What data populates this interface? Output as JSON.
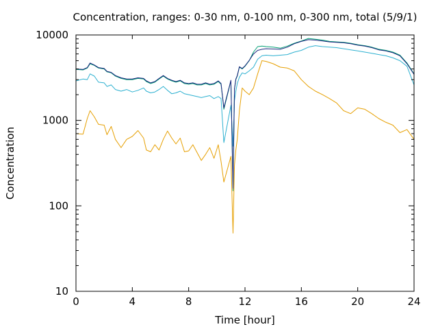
{
  "chart_data": {
    "type": "line",
    "title": "Concentration, ranges: 0-30 nm, 0-100 nm, 0-300 nm, total (5/9/1)",
    "xlabel": "Time [hour]",
    "ylabel": "Concentration",
    "xlim": [
      0,
      24
    ],
    "ylim": [
      10,
      10000
    ],
    "yscale": "log",
    "grid": false,
    "legend": "none",
    "x_ticks": [
      "0",
      "4",
      "8",
      "12",
      "16",
      "20",
      "24"
    ],
    "y_ticks": [
      "10",
      "100",
      "1000",
      "10000"
    ],
    "series": [
      {
        "color": "#e69f00",
        "x": [
          0,
          0.5,
          0.8,
          1.0,
          1.3,
          1.6,
          2.0,
          2.2,
          2.5,
          2.8,
          3.2,
          3.6,
          4.0,
          4.4,
          4.8,
          5.0,
          5.3,
          5.6,
          5.9,
          6.2,
          6.5,
          6.8,
          7.1,
          7.4,
          7.7,
          8.0,
          8.3,
          8.6,
          8.9,
          9.2,
          9.5,
          9.8,
          10.1,
          10.3,
          10.5,
          11.0,
          11.15,
          11.25,
          11.35,
          11.45,
          11.6,
          11.8,
          12.0,
          12.3,
          12.6,
          12.9,
          13.2,
          13.5,
          14.0,
          14.5,
          15.0,
          15.5,
          16.0,
          16.5,
          17.0,
          17.5,
          18.0,
          18.5,
          19.0,
          19.5,
          20.0,
          20.5,
          21.0,
          21.5,
          22.0,
          22.5,
          23.0,
          23.5,
          24.0
        ],
        "y": [
          700,
          690,
          1050,
          1300,
          1100,
          900,
          880,
          680,
          850,
          600,
          480,
          600,
          650,
          760,
          620,
          450,
          430,
          520,
          450,
          600,
          750,
          620,
          530,
          620,
          430,
          440,
          520,
          420,
          340,
          400,
          480,
          360,
          520,
          330,
          190,
          380,
          48,
          300,
          450,
          600,
          1300,
          2400,
          2200,
          2000,
          2400,
          3500,
          5000,
          4900,
          4600,
          4200,
          4100,
          3800,
          3000,
          2500,
          2200,
          2000,
          1800,
          1600,
          1300,
          1200,
          1400,
          1350,
          1200,
          1050,
          950,
          880,
          720,
          780,
          600
        ]
      },
      {
        "color": "#2cb0d0",
        "x": [
          0,
          0.5,
          0.8,
          1.0,
          1.3,
          1.6,
          2.0,
          2.2,
          2.5,
          2.8,
          3.2,
          3.6,
          4.0,
          4.4,
          4.8,
          5.0,
          5.3,
          5.6,
          5.9,
          6.2,
          6.5,
          6.8,
          7.1,
          7.4,
          7.7,
          8.0,
          8.3,
          8.6,
          8.9,
          9.2,
          9.5,
          9.8,
          10.1,
          10.3,
          10.5,
          11.0,
          11.15,
          11.25,
          11.35,
          11.45,
          11.6,
          11.8,
          12.0,
          12.3,
          12.6,
          12.9,
          13.2,
          13.5,
          14.0,
          14.5,
          15.0,
          15.5,
          16.0,
          16.5,
          17.0,
          17.5,
          18.0,
          18.5,
          19.0,
          19.5,
          20.0,
          20.5,
          21.0,
          21.5,
          22.0,
          22.5,
          23.0,
          23.5,
          24.0
        ],
        "y": [
          2900,
          3050,
          3000,
          3500,
          3300,
          2800,
          2750,
          2500,
          2600,
          2300,
          2200,
          2300,
          2150,
          2250,
          2400,
          2200,
          2100,
          2150,
          2300,
          2500,
          2250,
          2050,
          2100,
          2200,
          2050,
          2000,
          1950,
          1900,
          1850,
          1900,
          1950,
          1800,
          1900,
          1800,
          550,
          1500,
          500,
          1700,
          2200,
          2700,
          3200,
          3600,
          3500,
          3800,
          4200,
          5200,
          5700,
          5800,
          5700,
          5800,
          5900,
          6300,
          6600,
          7200,
          7500,
          7300,
          7200,
          7100,
          6900,
          6700,
          6500,
          6300,
          6100,
          5900,
          5700,
          5400,
          5000,
          4300,
          2600
        ]
      },
      {
        "color": "#009e73",
        "x": [
          0,
          0.5,
          0.8,
          1.0,
          1.3,
          1.6,
          2.0,
          2.2,
          2.5,
          2.8,
          3.2,
          3.6,
          4.0,
          4.4,
          4.8,
          5.0,
          5.3,
          5.6,
          5.9,
          6.2,
          6.5,
          6.8,
          7.1,
          7.4,
          7.7,
          8.0,
          8.3,
          8.6,
          8.9,
          9.2,
          9.5,
          9.8,
          10.1,
          10.3,
          10.5,
          11.0,
          11.15,
          11.25,
          11.35,
          11.45,
          11.6,
          11.8,
          12.0,
          12.3,
          12.6,
          12.9,
          13.2,
          13.5,
          14.0,
          14.5,
          15.0,
          15.5,
          16.0,
          16.5,
          17.0,
          17.5,
          18.0,
          18.5,
          19.0,
          19.5,
          20.0,
          20.5,
          21.0,
          21.5,
          22.0,
          22.5,
          23.0,
          23.5,
          24.0
        ],
        "y": [
          3950,
          3900,
          4100,
          4600,
          4400,
          4100,
          4000,
          3700,
          3600,
          3300,
          3100,
          3000,
          3000,
          3100,
          3050,
          2850,
          2700,
          2800,
          3050,
          3300,
          3050,
          2900,
          2800,
          2900,
          2700,
          2650,
          2700,
          2600,
          2600,
          2700,
          2600,
          2650,
          2850,
          2650,
          1350,
          2900,
          150,
          2300,
          3000,
          3300,
          4200,
          4000,
          4300,
          5000,
          6300,
          7300,
          7400,
          7300,
          7200,
          7000,
          7400,
          8000,
          8500,
          9100,
          8900,
          8700,
          8400,
          8300,
          8200,
          8000,
          7700,
          7500,
          7200,
          6800,
          6600,
          6300,
          5800,
          4700,
          3500
        ]
      },
      {
        "color": "#1a237e",
        "x": [
          0,
          0.5,
          0.8,
          1.0,
          1.3,
          1.6,
          2.0,
          2.2,
          2.5,
          2.8,
          3.2,
          3.6,
          4.0,
          4.4,
          4.8,
          5.0,
          5.3,
          5.6,
          5.9,
          6.2,
          6.5,
          6.8,
          7.1,
          7.4,
          7.7,
          8.0,
          8.3,
          8.6,
          8.9,
          9.2,
          9.5,
          9.8,
          10.1,
          10.3,
          10.5,
          11.0,
          11.15,
          11.25,
          11.35,
          11.45,
          11.6,
          11.8,
          12.0,
          12.3,
          12.6,
          12.9,
          13.2,
          13.5,
          14.0,
          14.5,
          15.0,
          15.5,
          16.0,
          16.5,
          17.0,
          17.5,
          18.0,
          18.5,
          19.0,
          19.5,
          20.0,
          20.5,
          21.0,
          21.5,
          22.0,
          22.5,
          23.0,
          23.5,
          24.0
        ],
        "y": [
          4000,
          3950,
          4150,
          4700,
          4450,
          4150,
          4050,
          3750,
          3650,
          3350,
          3150,
          3050,
          3050,
          3150,
          3100,
          2900,
          2750,
          2850,
          3100,
          3350,
          3100,
          2950,
          2850,
          2950,
          2750,
          2700,
          2750,
          2650,
          2650,
          2750,
          2650,
          2700,
          2900,
          2700,
          1400,
          2950,
          160,
          2350,
          3050,
          3350,
          4250,
          4050,
          4350,
          5050,
          6000,
          6600,
          6800,
          6900,
          6850,
          6800,
          7200,
          7900,
          8400,
          8800,
          8700,
          8500,
          8300,
          8200,
          8100,
          7900,
          7600,
          7400,
          7100,
          6700,
          6500,
          6200,
          5700,
          4600,
          3450
        ]
      }
    ]
  }
}
